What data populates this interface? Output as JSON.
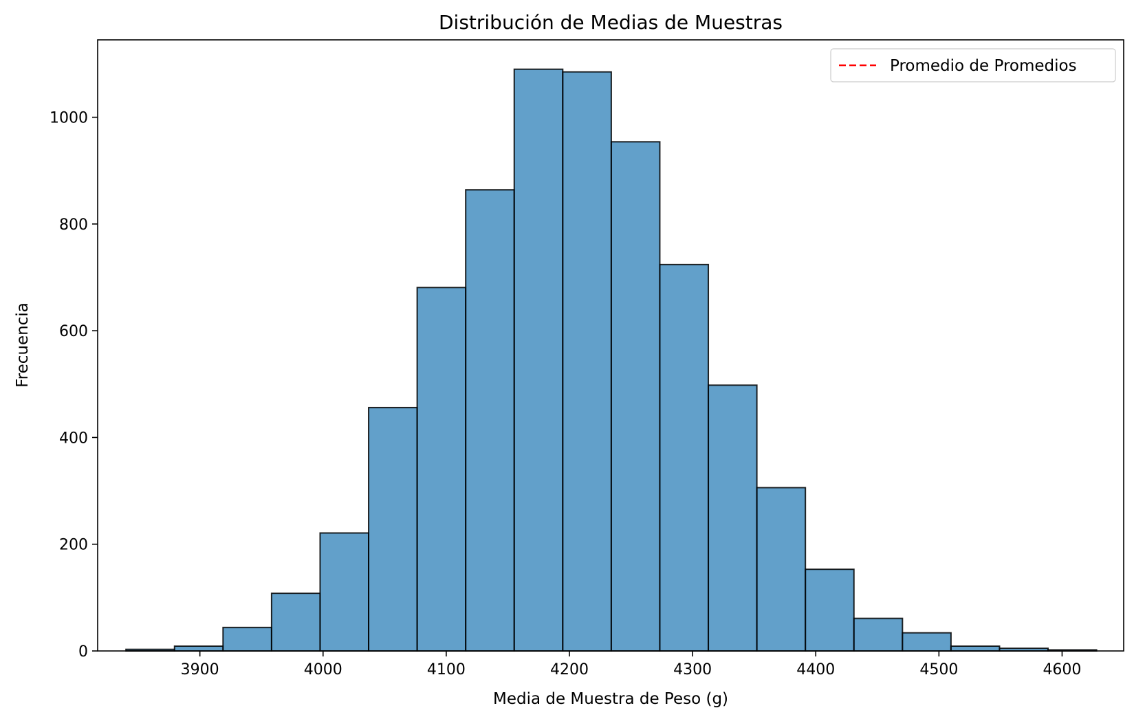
{
  "chart_data": {
    "type": "bar",
    "title": "Distribución de Medias de Muestras",
    "xlabel": "Media de Muestra de Peso (g)",
    "ylabel": "Frecuencia",
    "bin_edges": [
      3840,
      3879.4,
      3918.8,
      3958.2,
      3997.6,
      4037,
      4076.4,
      4115.8,
      4155.2,
      4194.6,
      4234,
      4273.4,
      4312.8,
      4352.2,
      4391.6,
      4431,
      4470.4,
      4509.8,
      4549.2,
      4588.6,
      4628
    ],
    "values": [
      3,
      9,
      44,
      108,
      221,
      456,
      681,
      864,
      1090,
      1085,
      954,
      724,
      498,
      306,
      153,
      61,
      34,
      9,
      5,
      2
    ],
    "xlim": [
      3817,
      4650
    ],
    "ylim": [
      0,
      1145
    ],
    "xticks": [
      3900,
      4000,
      4100,
      4200,
      4300,
      4400,
      4500,
      4600
    ],
    "yticks": [
      0,
      200,
      400,
      600,
      800,
      1000
    ],
    "bar_color": "#1f77b4",
    "bar_alpha": 0.7,
    "edge_color": "#000000",
    "grid": false,
    "legend": {
      "placement": "top-right",
      "entries": [
        {
          "label": "Promedio de Promedios",
          "color": "#ff0000",
          "style": "dashed"
        }
      ]
    }
  }
}
